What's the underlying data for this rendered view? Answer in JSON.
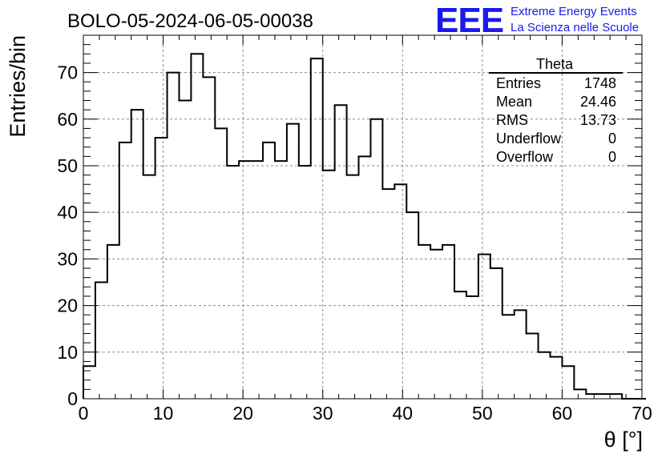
{
  "header": {
    "title": "BOLO-05-2024-06-05-00038",
    "logo_text": "EEE",
    "org_line1": "Extreme Energy Events",
    "org_line2": "La Scienza nelle Scuole",
    "logo_color": "#1a1aee"
  },
  "stats_box": {
    "title": "Theta",
    "rows": [
      {
        "label": "Entries",
        "value": "1748"
      },
      {
        "label": "Mean",
        "value": "24.46"
      },
      {
        "label": "RMS",
        "value": "13.73"
      },
      {
        "label": "Underflow",
        "value": "0"
      },
      {
        "label": "Overflow",
        "value": "0"
      }
    ]
  },
  "chart_data": {
    "type": "bar",
    "style": "step-histogram",
    "title": "BOLO-05-2024-06-05-00038",
    "xlabel": "θ [°]",
    "ylabel": "Entries/bin",
    "xlim": [
      0,
      70
    ],
    "ylim": [
      0,
      78
    ],
    "bin_width": 1.5,
    "x_ticks": [
      0,
      10,
      20,
      30,
      40,
      50,
      60,
      70
    ],
    "y_ticks": [
      0,
      10,
      20,
      30,
      40,
      50,
      60,
      70
    ],
    "grid": true,
    "line_color": "#000000",
    "values": [
      7,
      25,
      33,
      55,
      62,
      48,
      56,
      70,
      64,
      74,
      69,
      58,
      50,
      51,
      51,
      55,
      51,
      59,
      50,
      73,
      49,
      63,
      48,
      52,
      60,
      45,
      46,
      40,
      33,
      32,
      33,
      23,
      22,
      31,
      28,
      18,
      19,
      14,
      10,
      9,
      7,
      2,
      1,
      1,
      1,
      0,
      0
    ]
  }
}
